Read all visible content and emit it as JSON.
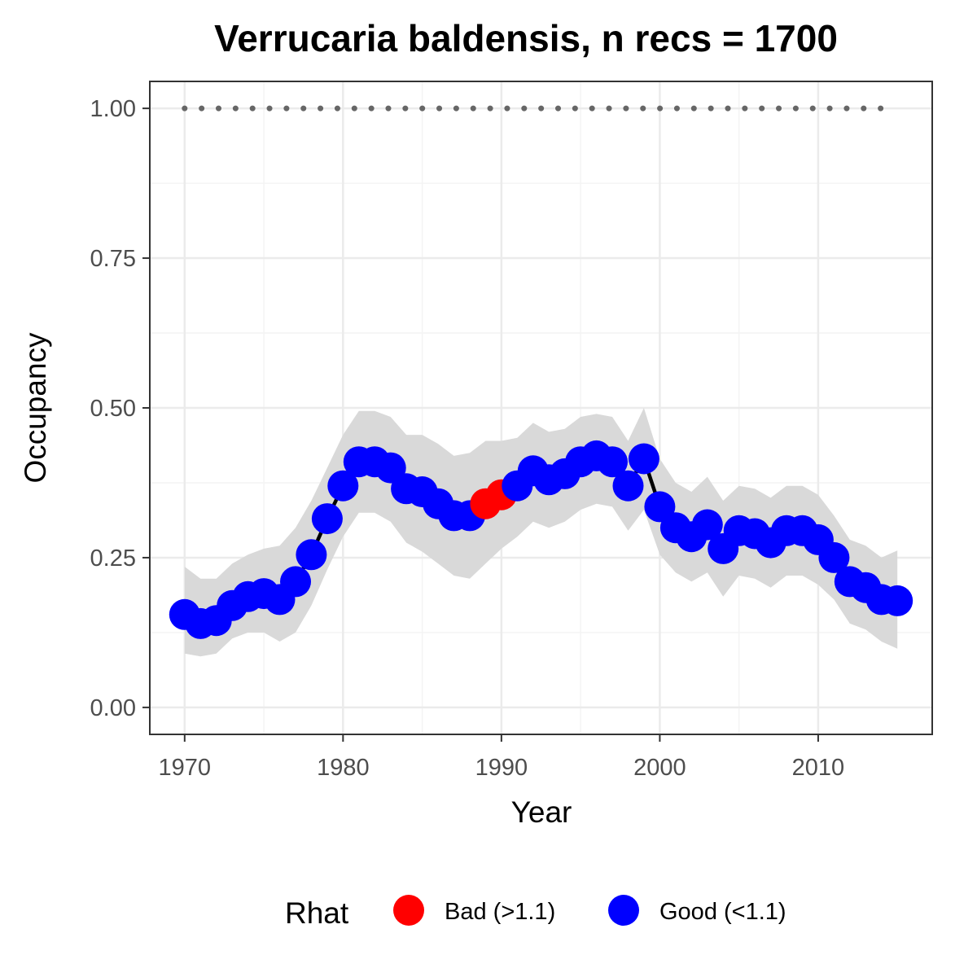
{
  "chart_data": {
    "type": "line",
    "title": "Verrucaria baldensis, n recs = 1700",
    "xlabel": "Year",
    "ylabel": "Occupancy",
    "xlim": [
      1967.8,
      2017.2
    ],
    "ylim": [
      -0.045,
      1.045
    ],
    "x_ticks": [
      1970,
      1980,
      1990,
      2000,
      2010
    ],
    "x_tick_labels": [
      "1970",
      "1980",
      "1990",
      "2000",
      "2010"
    ],
    "y_ticks": [
      0,
      0.25,
      0.5,
      0.75,
      1
    ],
    "y_tick_labels": [
      "0.00",
      "0.25",
      "0.50",
      "0.75",
      "1.00"
    ],
    "grid": true,
    "reference_line": {
      "y": 1.0,
      "style": "dotted",
      "x_range": [
        1970,
        2015
      ]
    },
    "series": [
      {
        "years": [
          1970,
          1971,
          1972,
          1973,
          1974,
          1975,
          1976,
          1977,
          1978,
          1979,
          1980,
          1981,
          1982,
          1983,
          1984,
          1985,
          1986,
          1987,
          1988,
          1989,
          1990,
          1991,
          1992,
          1993,
          1994,
          1995,
          1996,
          1997,
          1998,
          1999,
          2000,
          2001,
          2002,
          2003,
          2004,
          2005,
          2006,
          2007,
          2008,
          2009,
          2010,
          2011,
          2012,
          2013,
          2014,
          2015
        ],
        "occupancy": [
          0.155,
          0.14,
          0.145,
          0.17,
          0.185,
          0.19,
          0.18,
          0.21,
          0.255,
          0.315,
          0.37,
          0.41,
          0.41,
          0.4,
          0.365,
          0.36,
          0.34,
          0.32,
          0.32,
          0.34,
          0.355,
          0.37,
          0.395,
          0.38,
          0.39,
          0.41,
          0.42,
          0.41,
          0.37,
          0.415,
          0.335,
          0.3,
          0.285,
          0.305,
          0.265,
          0.295,
          0.29,
          0.275,
          0.295,
          0.295,
          0.28,
          0.25,
          0.21,
          0.2,
          0.18,
          0.178
        ],
        "lower": [
          0.09,
          0.085,
          0.09,
          0.115,
          0.125,
          0.125,
          0.11,
          0.125,
          0.17,
          0.23,
          0.285,
          0.325,
          0.325,
          0.31,
          0.275,
          0.26,
          0.24,
          0.22,
          0.215,
          0.24,
          0.265,
          0.285,
          0.31,
          0.3,
          0.31,
          0.33,
          0.34,
          0.335,
          0.295,
          0.33,
          0.255,
          0.225,
          0.21,
          0.225,
          0.185,
          0.22,
          0.215,
          0.2,
          0.22,
          0.22,
          0.205,
          0.18,
          0.14,
          0.13,
          0.11,
          0.098
        ],
        "upper": [
          0.235,
          0.215,
          0.215,
          0.24,
          0.255,
          0.265,
          0.27,
          0.3,
          0.345,
          0.4,
          0.455,
          0.495,
          0.495,
          0.485,
          0.455,
          0.455,
          0.44,
          0.42,
          0.425,
          0.445,
          0.445,
          0.45,
          0.475,
          0.46,
          0.465,
          0.485,
          0.49,
          0.485,
          0.445,
          0.5,
          0.415,
          0.375,
          0.36,
          0.385,
          0.345,
          0.37,
          0.365,
          0.35,
          0.37,
          0.37,
          0.355,
          0.32,
          0.28,
          0.27,
          0.25,
          0.262
        ],
        "rhat": [
          "Good",
          "Good",
          "Good",
          "Good",
          "Good",
          "Good",
          "Good",
          "Good",
          "Good",
          "Good",
          "Good",
          "Good",
          "Good",
          "Good",
          "Good",
          "Good",
          "Good",
          "Good",
          "Good",
          "Bad",
          "Bad",
          "Good",
          "Good",
          "Good",
          "Good",
          "Good",
          "Good",
          "Good",
          "Good",
          "Good",
          "Good",
          "Good",
          "Good",
          "Good",
          "Good",
          "Good",
          "Good",
          "Good",
          "Good",
          "Good",
          "Good",
          "Good",
          "Good",
          "Good",
          "Good",
          "Good"
        ]
      }
    ],
    "legend": {
      "title": "Rhat",
      "position": "bottom",
      "entries": [
        {
          "key": "Bad",
          "label": "Bad (>1.1)",
          "color": "#ff0000"
        },
        {
          "key": "Good",
          "label": "Good (<1.1)",
          "color": "#0000ff"
        }
      ]
    },
    "colors": {
      "ribbon": "#d9d9d9",
      "line": "#000000",
      "reference_dots": "#666666",
      "grid_major": "#ebebeb",
      "grid_minor": "#f4f4f4",
      "panel_border": "#333333"
    }
  }
}
